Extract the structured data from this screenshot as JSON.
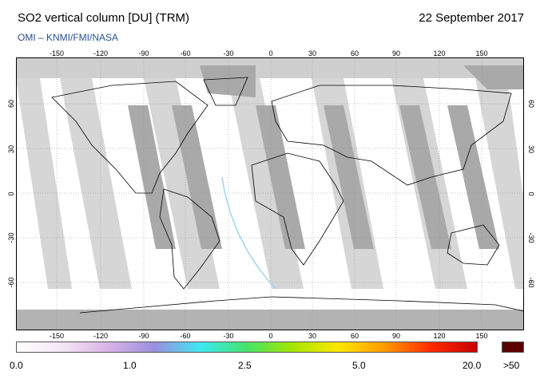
{
  "header": {
    "title": "SO2 vertical column [DU] (TRM)",
    "date": "22 September 2017",
    "credit": "OMI  –  KNMI/FMI/NASA"
  },
  "map": {
    "lon_ticks": [
      "-150",
      "-120",
      "-90",
      "-60",
      "-30",
      "0",
      "30",
      "60",
      "90",
      "120",
      "150"
    ],
    "lat_ticks": [
      "60",
      "30",
      "0",
      "-30",
      "-60"
    ],
    "colors": {
      "swath_light": "#d6d6d6",
      "swath_dark": "#a9a9a9",
      "ocean": "#ffffff",
      "coast": "#000000",
      "grid": "#888888"
    }
  },
  "colorbar": {
    "labels": [
      "0.0",
      "1.0",
      "2.5",
      "5.0",
      "20.0"
    ],
    "overflow_label": ">50",
    "overflow_color": "#5a0000",
    "gradient": [
      "#ffffff",
      "#f3e6f5",
      "#d9b3e6",
      "#9a8fe0",
      "#3fe8f0",
      "#44e36c",
      "#a6e600",
      "#ffe600",
      "#ff9a00",
      "#ff2a00",
      "#c80000"
    ]
  }
}
